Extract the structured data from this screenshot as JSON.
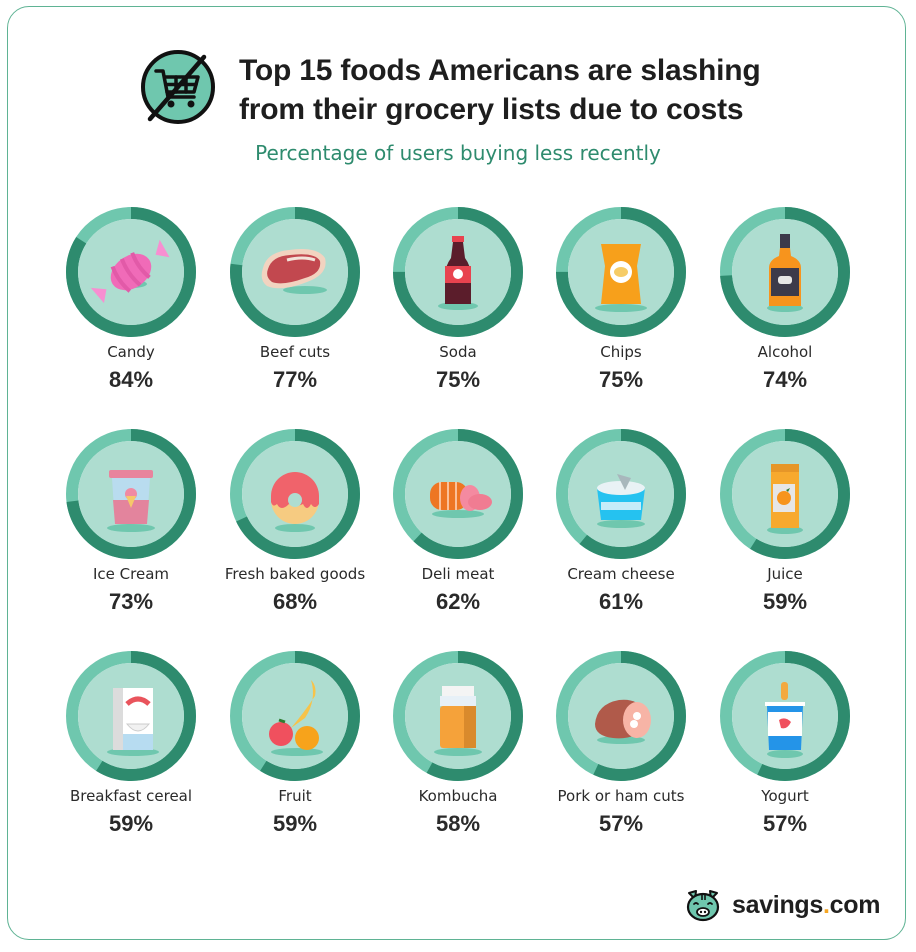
{
  "header": {
    "title_line1": "Top 15 foods Americans are slashing",
    "title_line2": "from their grocery lists due to costs",
    "subtitle": "Percentage of users buying less recently",
    "icon": "no-shopping-cart-icon"
  },
  "colors": {
    "ring_dark": "#2e8b6e",
    "ring_light": "#6fc7ae",
    "inner_fill": "#aeddd0",
    "accent_green": "#2e8b6e",
    "logo_dot": "#f5a623",
    "border": "#5fb394"
  },
  "items": [
    {
      "label": "Candy",
      "pct": "84%",
      "icon": "candy-icon"
    },
    {
      "label": "Beef cuts",
      "pct": "77%",
      "icon": "steak-icon"
    },
    {
      "label": "Soda",
      "pct": "75%",
      "icon": "soda-bottle-icon"
    },
    {
      "label": "Chips",
      "pct": "75%",
      "icon": "chips-bag-icon"
    },
    {
      "label": "Alcohol",
      "pct": "74%",
      "icon": "whiskey-bottle-icon"
    },
    {
      "label": "Ice Cream",
      "pct": "73%",
      "icon": "ice-cream-tub-icon"
    },
    {
      "label": "Fresh baked goods",
      "pct": "68%",
      "icon": "donut-icon"
    },
    {
      "label": "Deli meat",
      "pct": "62%",
      "icon": "deli-meat-icon"
    },
    {
      "label": "Cream cheese",
      "pct": "61%",
      "icon": "cream-cheese-tub-icon"
    },
    {
      "label": "Juice",
      "pct": "59%",
      "icon": "juice-carton-icon"
    },
    {
      "label": "Breakfast cereal",
      "pct": "59%",
      "icon": "cereal-box-icon"
    },
    {
      "label": "Fruit",
      "pct": "59%",
      "icon": "fruit-icon"
    },
    {
      "label": "Kombucha",
      "pct": "58%",
      "icon": "kombucha-jar-icon"
    },
    {
      "label": "Pork or ham cuts",
      "pct": "57%",
      "icon": "ham-icon"
    },
    {
      "label": "Yogurt",
      "pct": "57%",
      "icon": "yogurt-cup-icon"
    }
  ],
  "footer": {
    "brand_name": "savings",
    "brand_dot": ".",
    "brand_tld": "com",
    "logo_icon": "pig-icon"
  },
  "chart_data": {
    "type": "donut-grid",
    "title": "Top 15 foods Americans are slashing from their grocery lists due to costs",
    "subtitle": "Percentage of users buying less recently",
    "categories": [
      "Candy",
      "Beef cuts",
      "Soda",
      "Chips",
      "Alcohol",
      "Ice Cream",
      "Fresh baked goods",
      "Deli meat",
      "Cream cheese",
      "Juice",
      "Breakfast cereal",
      "Fruit",
      "Kombucha",
      "Pork or ham cuts",
      "Yogurt"
    ],
    "values": [
      84,
      77,
      75,
      75,
      74,
      73,
      68,
      62,
      61,
      59,
      59,
      59,
      58,
      57,
      57
    ],
    "unit": "%",
    "layout": {
      "rows": 3,
      "cols": 5
    },
    "source": "savings.com"
  }
}
